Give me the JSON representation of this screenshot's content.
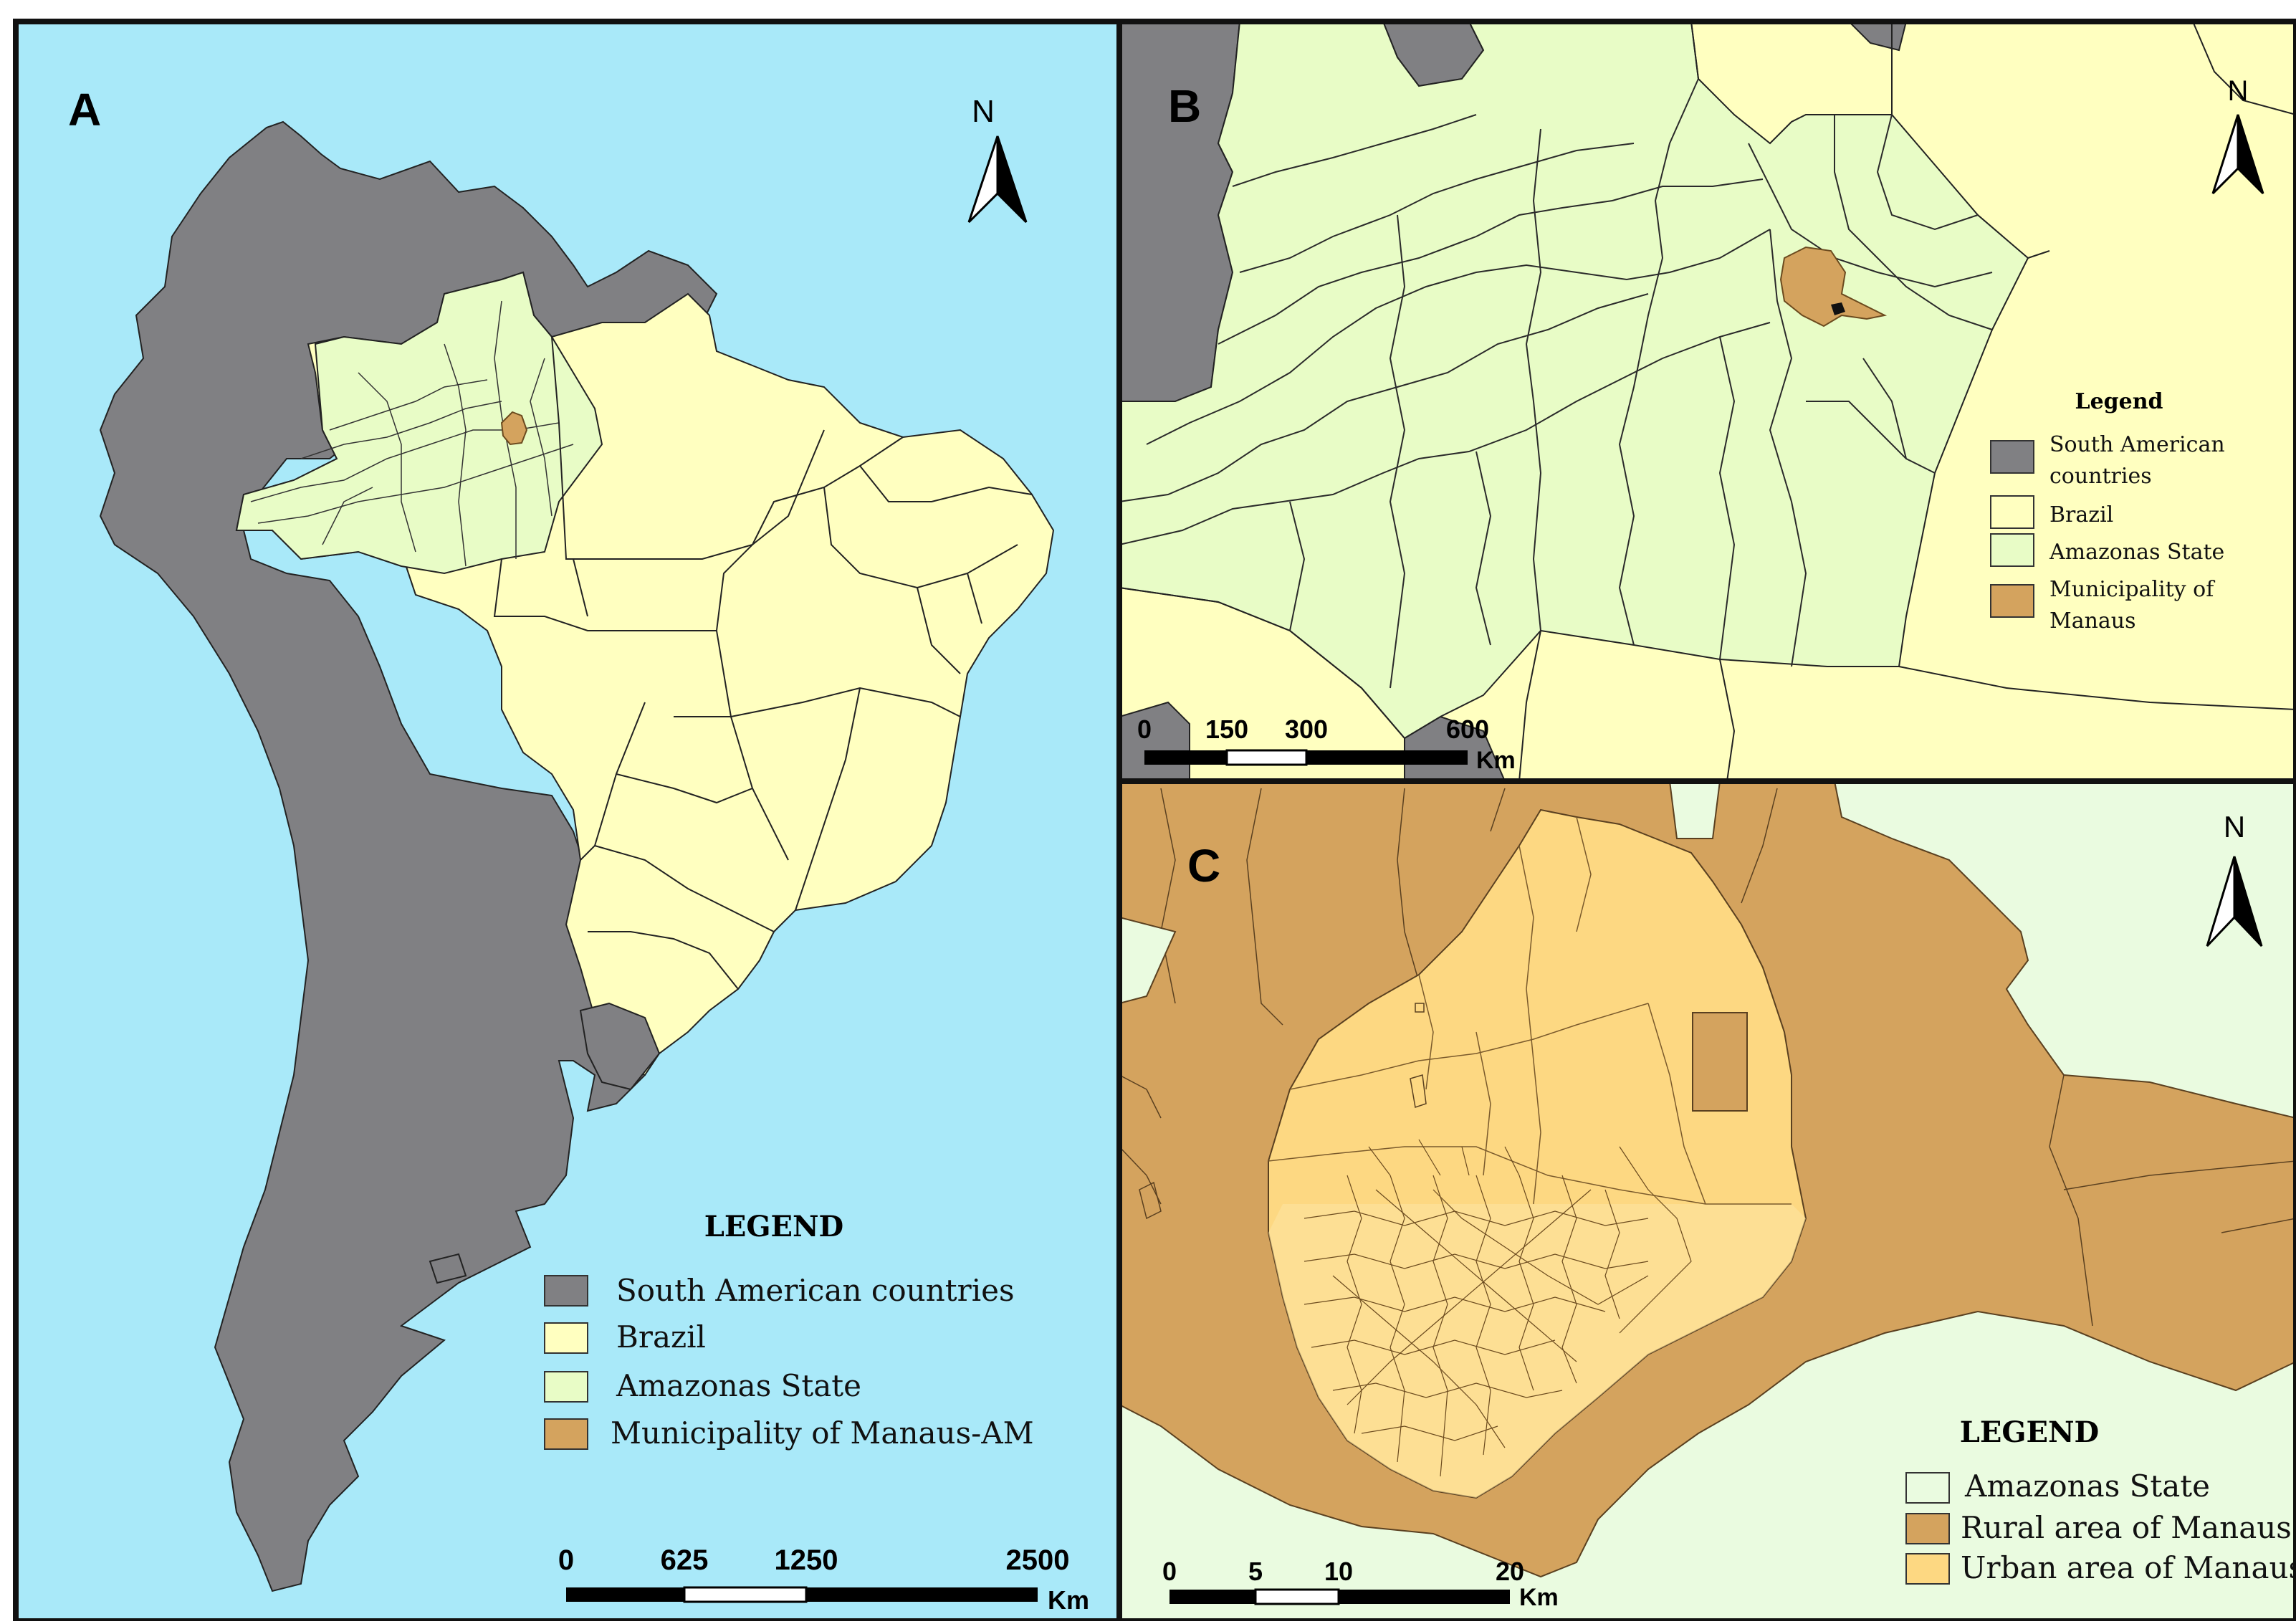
{
  "panels": {
    "a": {
      "letter": "A",
      "north_label": "N",
      "legend": {
        "title": "LEGEND",
        "items": [
          {
            "label": "South American countries",
            "color": "#808083"
          },
          {
            "label": "Brazil",
            "color": "#ffffc0"
          },
          {
            "label": "Amazonas State",
            "color": "#e8fcc6"
          },
          {
            "label": "Municipality of Manaus-AM",
            "color": "#d4a35e"
          }
        ]
      },
      "scalebar": {
        "ticks": [
          "0",
          "625",
          "1250",
          "2500"
        ],
        "unit": "Km"
      }
    },
    "b": {
      "letter": "B",
      "north_label": "N",
      "legend": {
        "title": "Legend",
        "items": [
          {
            "label": "South American countries",
            "color": "#808083"
          },
          {
            "label": "Brazil",
            "color": "#ffffc0"
          },
          {
            "label": "Amazonas State",
            "color": "#e8fcc6"
          },
          {
            "label": "Municipality of Manaus",
            "color": "#d4a35e"
          }
        ]
      },
      "scalebar": {
        "ticks": [
          "0",
          "150",
          "300",
          "600"
        ],
        "unit": "Km"
      }
    },
    "c": {
      "letter": "C",
      "north_label": "N",
      "legend": {
        "title": "LEGEND",
        "items": [
          {
            "label": "Amazonas State",
            "color": "#eafbe0"
          },
          {
            "label": "Rural area of Manaus",
            "color": "#d4a35e"
          },
          {
            "label": "Urban area of Manaus",
            "color": "#fdd882"
          }
        ]
      },
      "scalebar": {
        "ticks": [
          "0",
          "5",
          "10",
          "20"
        ],
        "unit": "Km"
      }
    }
  },
  "colors": {
    "ocean": "#a9e9f9",
    "countries": "#808083",
    "brazil": "#ffffc0",
    "amazonas": "#e8fcc6",
    "manaus": "#d4a35e",
    "urban": "#fdd882",
    "frame": "#111111"
  }
}
